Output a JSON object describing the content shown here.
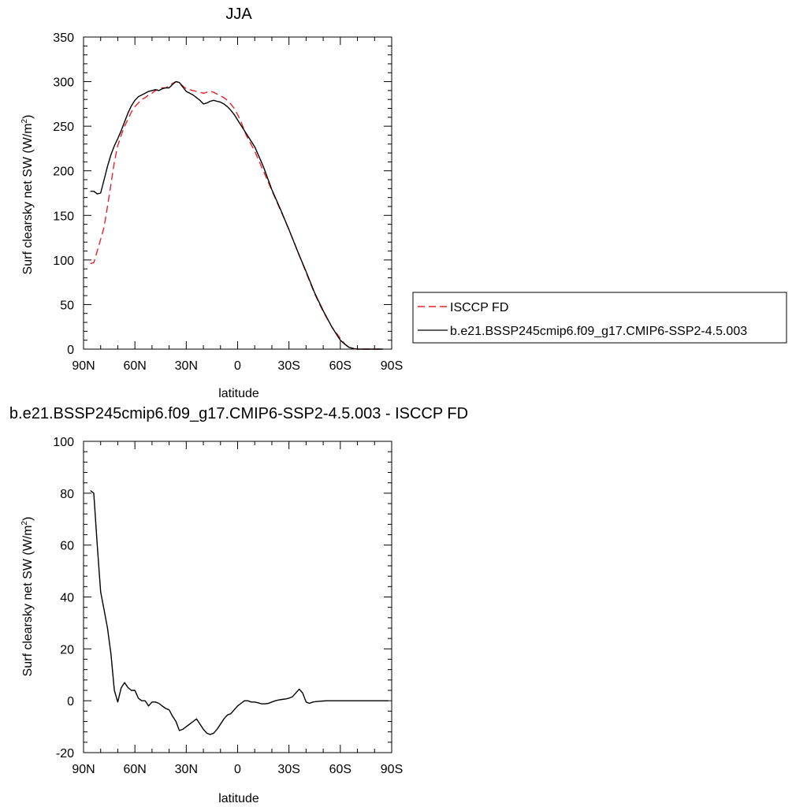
{
  "chart_data": [
    {
      "type": "line",
      "title": "JJA",
      "xlabel": "latitude",
      "ylabel": "Surf clearsky net SW (W/m",
      "ylabel_sup": "2",
      "ylabel_close": ")",
      "xlim": [
        90,
        -90
      ],
      "ylim": [
        0,
        350
      ],
      "xticks": [
        {
          "value": 90,
          "label": "90N"
        },
        {
          "value": 60,
          "label": "60N"
        },
        {
          "value": 30,
          "label": "30N"
        },
        {
          "value": 0,
          "label": "0"
        },
        {
          "value": -30,
          "label": "30S"
        },
        {
          "value": -60,
          "label": "60S"
        },
        {
          "value": -90,
          "label": "90S"
        }
      ],
      "yticks": [
        0,
        50,
        100,
        150,
        200,
        250,
        300,
        350
      ],
      "legend_position": "right",
      "series": [
        {
          "name": "ISCCP FD",
          "color": "#e8212a",
          "dash": "dashed",
          "x": [
            86,
            84,
            82,
            80,
            78,
            76,
            74,
            72,
            70,
            68,
            66,
            64,
            62,
            60,
            58,
            56,
            54,
            52,
            50,
            48,
            46,
            44,
            42,
            40,
            38,
            36,
            34,
            32,
            30,
            28,
            26,
            24,
            22,
            20,
            18,
            16,
            14,
            12,
            10,
            8,
            6,
            4,
            2,
            0,
            -2,
            -5,
            -10,
            -15,
            -20,
            -25,
            -30,
            -35,
            -40,
            -45,
            -50,
            -55,
            -60,
            -63,
            -65,
            -68,
            -70,
            -73,
            -76,
            -80,
            -85
          ],
          "y": [
            96,
            97,
            110,
            123,
            137,
            160,
            185,
            210,
            228,
            240,
            250,
            258,
            266,
            272,
            276,
            280,
            282,
            285,
            287,
            290,
            292,
            293,
            293,
            295,
            298,
            300,
            299,
            295,
            292,
            291,
            290,
            289,
            288,
            287,
            288,
            289,
            288,
            286,
            284,
            282,
            279,
            275,
            270,
            263,
            255,
            240,
            222,
            200,
            178,
            156,
            134,
            110,
            86,
            62,
            42,
            25,
            12,
            5,
            2,
            0.5,
            0,
            0,
            0,
            0,
            0
          ]
        },
        {
          "name": "b.e21.BSSP245cmip6.f09_g17.CMIP6-SSP2-4.5.003",
          "color": "#000000",
          "dash": "solid",
          "x": [
            86,
            84,
            82,
            80,
            78,
            76,
            74,
            72,
            70,
            68,
            66,
            64,
            62,
            60,
            58,
            56,
            54,
            52,
            50,
            48,
            46,
            44,
            42,
            40,
            38,
            36,
            34,
            32,
            30,
            28,
            26,
            24,
            22,
            20,
            18,
            16,
            14,
            12,
            10,
            8,
            6,
            4,
            2,
            0,
            -2,
            -5,
            -10,
            -15,
            -20,
            -25,
            -30,
            -35,
            -40,
            -45,
            -50,
            -55,
            -60,
            -63,
            -65,
            -68,
            -70,
            -73,
            -76,
            -80,
            -85
          ],
          "y": [
            177,
            177,
            174,
            175,
            190,
            205,
            218,
            228,
            236,
            245,
            255,
            265,
            273,
            279,
            283,
            285,
            287,
            289,
            290,
            291,
            290,
            292,
            293,
            293,
            297,
            300,
            299,
            294,
            289,
            287,
            285,
            282,
            279,
            275,
            276,
            278,
            279,
            278,
            277,
            275,
            272,
            268,
            263,
            257,
            251,
            242,
            227,
            205,
            179,
            157,
            134,
            110,
            87,
            63,
            43,
            25,
            10,
            5,
            2,
            0.5,
            0,
            0,
            0,
            0,
            0
          ]
        }
      ]
    },
    {
      "type": "line",
      "title": "b.e21.BSSP245cmip6.f09_g17.CMIP6-SSP2-4.5.003 - ISCCP FD",
      "xlabel": "latitude",
      "ylabel": "Surf clearsky net SW (W/m",
      "ylabel_sup": "2",
      "ylabel_close": ")",
      "xlim": [
        90,
        -90
      ],
      "ylim": [
        -20,
        100
      ],
      "xticks": [
        {
          "value": 90,
          "label": "90N"
        },
        {
          "value": 60,
          "label": "60N"
        },
        {
          "value": 30,
          "label": "30N"
        },
        {
          "value": 0,
          "label": "0"
        },
        {
          "value": -30,
          "label": "30S"
        },
        {
          "value": -60,
          "label": "60S"
        },
        {
          "value": -90,
          "label": "90S"
        }
      ],
      "yticks": [
        -20,
        0,
        20,
        40,
        60,
        80,
        100
      ],
      "series": [
        {
          "color": "#000000",
          "dash": "solid",
          "x": [
            86,
            84,
            82,
            80,
            78,
            76,
            74,
            72,
            70,
            68,
            66,
            64,
            62,
            60,
            58,
            56,
            54,
            52,
            50,
            48,
            46,
            44,
            42,
            40,
            38,
            36,
            34,
            32,
            30,
            28,
            26,
            24,
            22,
            20,
            18,
            16,
            14,
            12,
            10,
            8,
            6,
            4,
            2,
            0,
            -2,
            -4,
            -6,
            -8,
            -10,
            -12,
            -14,
            -16,
            -18,
            -20,
            -22,
            -24,
            -26,
            -28,
            -30,
            -32,
            -34,
            -36,
            -38,
            -40,
            -42,
            -44,
            -46,
            -48,
            -50,
            -52,
            -54,
            -56,
            -58,
            -60,
            -62,
            -64,
            -66,
            -68,
            -70,
            -72,
            -74,
            -76,
            -78,
            -80,
            -82,
            -84,
            -86,
            -88
          ],
          "y": [
            81,
            80,
            60,
            42,
            35,
            28,
            18,
            4,
            -0.5,
            5,
            7,
            5,
            4,
            4,
            1,
            0,
            0,
            -2,
            -0.5,
            -0.5,
            -1,
            -2,
            -3,
            -3.5,
            -6,
            -8,
            -11.5,
            -11,
            -10,
            -9,
            -8,
            -7,
            -9,
            -11,
            -12.5,
            -13,
            -12.5,
            -11,
            -9,
            -7,
            -5.5,
            -5,
            -3.5,
            -2,
            -1,
            0,
            0,
            -0.5,
            -0.5,
            -0.8,
            -1.2,
            -1.2,
            -1,
            -0.5,
            0,
            0.3,
            0.5,
            0.7,
            1,
            1.5,
            3,
            4.5,
            3,
            -0.5,
            -1,
            -0.5,
            -0.3,
            -0.2,
            -0.1,
            0,
            0,
            0,
            0,
            0,
            0,
            0,
            0,
            0,
            0,
            0,
            0,
            0,
            0,
            0,
            0,
            0,
            0,
            0
          ]
        }
      ]
    }
  ]
}
